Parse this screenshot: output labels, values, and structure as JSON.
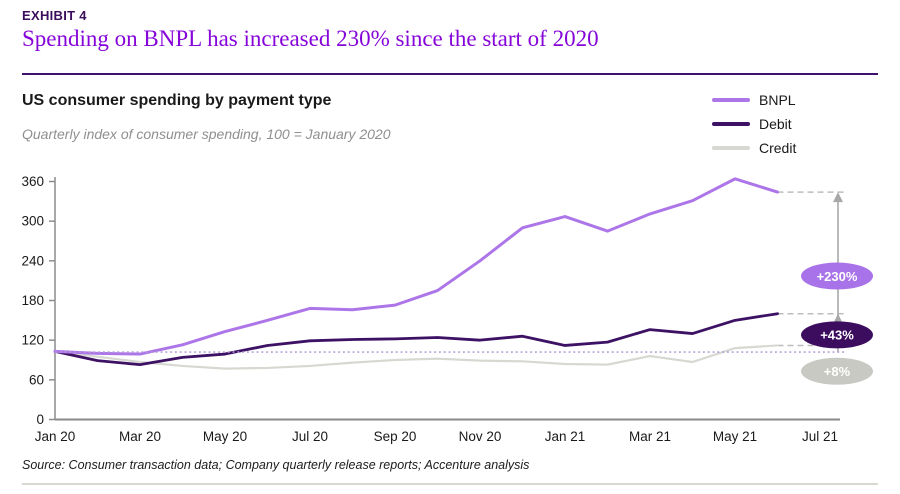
{
  "header": {
    "exhibit_label": "EXHIBIT 4",
    "title": "Spending on BNPL has increased 230% since the start of 2020"
  },
  "chart": {
    "title": "US consumer spending by payment type",
    "subtitle": "Quarterly index of consumer spending, 100 = January 2020",
    "legend": [
      {
        "key": "bnpl",
        "label": "BNPL",
        "color": "#ad76e8"
      },
      {
        "key": "debit",
        "label": "Debit",
        "color": "#3d1164"
      },
      {
        "key": "credit",
        "label": "Credit",
        "color": "#d8d8d2"
      }
    ]
  },
  "chart_data": {
    "type": "line",
    "title": "US consumer spending by payment type",
    "subtitle": "Quarterly index of consumer spending, 100 = January 2020",
    "x": [
      "Jan 20",
      "Feb 20",
      "Mar 20",
      "Apr 20",
      "May 20",
      "Jun 20",
      "Jul 20",
      "Aug 20",
      "Sep 20",
      "Oct 20",
      "Nov 20",
      "Dec 20",
      "Jan 21",
      "Feb 21",
      "Mar 21",
      "Apr 21",
      "May 21",
      "Jun 21"
    ],
    "x_tick_labels": [
      "Jan 20",
      "Mar 20",
      "May 20",
      "Jul 20",
      "Sep 20",
      "Nov 20",
      "Jan 21",
      "Mar 21",
      "May 21",
      "Jul 21"
    ],
    "ylim": [
      0,
      360
    ],
    "yticks": [
      0,
      60,
      120,
      180,
      240,
      300,
      360
    ],
    "grid": false,
    "legend_position": "top-right",
    "series": [
      {
        "key": "bnpl",
        "name": "BNPL",
        "color": "#ad76e8",
        "width": 3,
        "values": [
          103,
          100,
          99,
          113,
          133,
          150,
          168,
          166,
          173,
          195,
          240,
          290,
          307,
          285,
          311,
          331,
          364,
          344
        ]
      },
      {
        "key": "debit",
        "name": "Debit",
        "color": "#3d1164",
        "width": 2.8,
        "values": [
          103,
          89,
          83,
          94,
          99,
          112,
          119,
          121,
          122,
          124,
          120,
          126,
          112,
          117,
          136,
          130,
          150,
          160
        ]
      },
      {
        "key": "credit",
        "name": "Credit",
        "color": "#d8d8d2",
        "width": 2.2,
        "values": [
          103,
          95,
          87,
          81,
          77,
          78,
          81,
          86,
          90,
          92,
          89,
          88,
          84,
          83,
          96,
          87,
          108,
          112
        ]
      }
    ],
    "baseline": {
      "value": 102,
      "style": "dotted",
      "color": "#b49bd8"
    },
    "annotations": [
      {
        "key": "bnpl",
        "label": "+230%",
        "color": "#a873e8",
        "at_value": 217
      },
      {
        "key": "debit",
        "label": "+43%",
        "color": "#3c0d5e",
        "at_value": 128
      },
      {
        "key": "credit",
        "label": "+8%",
        "color": "#c9c9c3",
        "at_value": 73
      }
    ],
    "arrow_color": "#a8a8a8",
    "dash_color": "#bdbdbd"
  },
  "source": "Source: Consumer transaction data;  Company quarterly release reports; Accenture analysis"
}
